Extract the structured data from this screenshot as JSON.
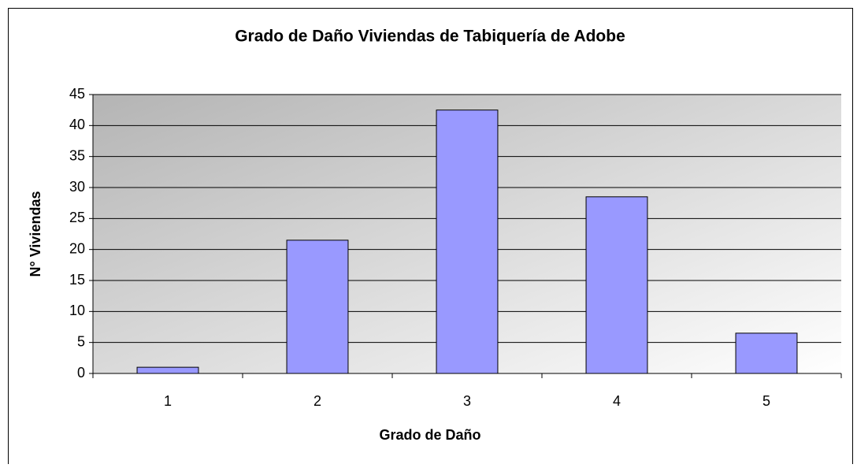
{
  "chart_data": {
    "type": "bar",
    "title": "Grado de Daño Viviendas de Tabiquería de Adobe",
    "x_label": "Grado de Daño",
    "y_label": "N° Viviendas",
    "categories": [
      "1",
      "2",
      "3",
      "4",
      "5"
    ],
    "values": [
      1,
      21.5,
      42.5,
      28.5,
      6.5
    ],
    "color": "#9999ff",
    "ylim": [
      0,
      45
    ],
    "yticks": [
      0,
      5,
      10,
      15,
      20,
      25,
      30,
      35,
      40,
      45
    ],
    "grid": true
  }
}
